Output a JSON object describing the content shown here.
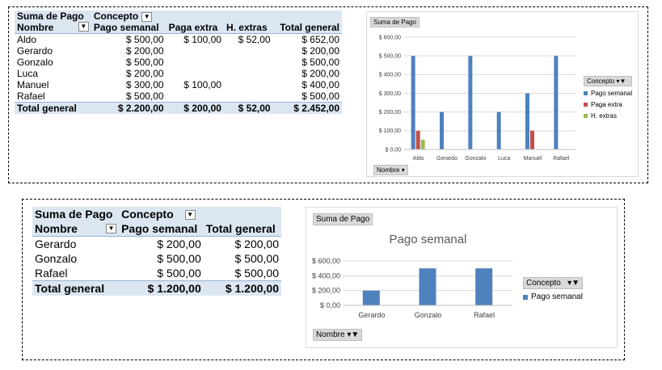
{
  "pivot1": {
    "corner_label": "Suma de Pago",
    "column_field": "Concepto",
    "row_field": "Nombre",
    "columns": [
      "Pago semanal",
      "Paga extra",
      "H. extras",
      "Total general"
    ],
    "rows": [
      {
        "name": "Aldo",
        "values": [
          "$ 500,00",
          "$ 100,00",
          "$ 52,00",
          "$ 652,00"
        ]
      },
      {
        "name": "Gerardo",
        "values": [
          "$ 200,00",
          "",
          "",
          "$ 200,00"
        ]
      },
      {
        "name": "Gonzalo",
        "values": [
          "$ 500,00",
          "",
          "",
          "$ 500,00"
        ]
      },
      {
        "name": "Luca",
        "values": [
          "$ 200,00",
          "",
          "",
          "$ 200,00"
        ]
      },
      {
        "name": "Manuel",
        "values": [
          "$ 300,00",
          "$ 100,00",
          "",
          "$ 400,00"
        ]
      },
      {
        "name": "Rafael",
        "values": [
          "$ 500,00",
          "",
          "",
          "$ 500,00"
        ]
      }
    ],
    "total_label": "Total general",
    "totals": [
      "$ 2.200,00",
      "$ 200,00",
      "$ 52,00",
      "$ 2.452,00"
    ]
  },
  "pivot2": {
    "corner_label": "Suma de Pago",
    "column_field": "Concepto",
    "row_field": "Nombre",
    "columns": [
      "Pago semanal",
      "Total general"
    ],
    "rows": [
      {
        "name": "Gerardo",
        "values": [
          "$ 200,00",
          "$ 200,00"
        ]
      },
      {
        "name": "Gonzalo",
        "values": [
          "$ 500,00",
          "$ 500,00"
        ]
      },
      {
        "name": "Rafael",
        "values": [
          "$ 500,00",
          "$ 500,00"
        ]
      }
    ],
    "total_label": "Total general",
    "totals": [
      "$ 1.200,00",
      "$ 1.200,00"
    ]
  },
  "chart1_ui": {
    "value_button": "Suma de Pago",
    "axis_button": "Nombre",
    "legend_button": "Concepto"
  },
  "chart2_ui": {
    "value_button": "Suma de Pago",
    "axis_button": "Nombre",
    "legend_button": "Concepto"
  },
  "chart_data": [
    {
      "type": "bar",
      "title": "",
      "categories": [
        "Aldo",
        "Gerardo",
        "Gonzalo",
        "Luca",
        "Manuel",
        "Rafael"
      ],
      "series": [
        {
          "name": "Pago semanal",
          "color": "#4f81bd",
          "values": [
            500,
            200,
            500,
            200,
            300,
            500
          ]
        },
        {
          "name": "Paga extra",
          "color": "#c0504d",
          "values": [
            100,
            null,
            null,
            null,
            100,
            null
          ]
        },
        {
          "name": "H. extras",
          "color": "#9bbb59",
          "values": [
            52,
            null,
            null,
            null,
            null,
            null
          ]
        }
      ],
      "ylim": [
        0,
        600
      ],
      "yticks": [
        "$ 0,00",
        "$ 100,00",
        "$ 200,00",
        "$ 300,00",
        "$ 400,00",
        "$ 500,00",
        "$ 600,00"
      ],
      "grid": true,
      "legend": "right"
    },
    {
      "type": "bar",
      "title": "Pago semanal",
      "categories": [
        "Gerardo",
        "Gonzalo",
        "Rafael"
      ],
      "series": [
        {
          "name": "Pago semanal",
          "color": "#4f81bd",
          "values": [
            200,
            500,
            500
          ]
        }
      ],
      "ylim": [
        0,
        600
      ],
      "yticks": [
        "$ 0,00",
        "$ 200,00",
        "$ 400,00",
        "$ 600,00"
      ],
      "grid": true,
      "legend": "right"
    }
  ]
}
